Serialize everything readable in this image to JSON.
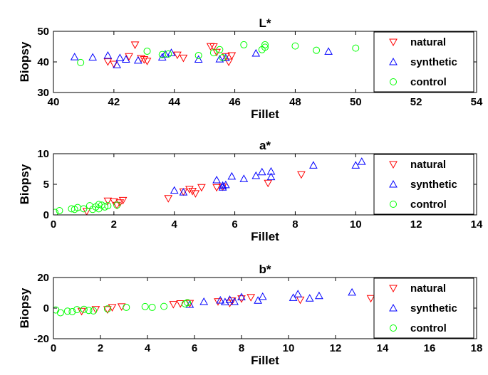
{
  "chart_data": [
    {
      "type": "scatter",
      "title": "L*",
      "xlabel": "Fillet",
      "ylabel": "Biopsy",
      "xlim": [
        40,
        54
      ],
      "ylim": [
        30,
        50
      ],
      "xticks": [
        40,
        42,
        44,
        46,
        48,
        50,
        52,
        54
      ],
      "yticks": [
        30,
        40,
        50
      ],
      "legend_position": "right",
      "series": [
        {
          "name": "natural",
          "marker": "triangle-down",
          "color": "#ff0000",
          "points": [
            [
              41.8,
              40.1
            ],
            [
              42.0,
              39.3
            ],
            [
              42.5,
              41.8
            ],
            [
              42.7,
              45.6
            ],
            [
              42.9,
              41.2
            ],
            [
              43.1,
              40.3
            ],
            [
              44.1,
              42.3
            ],
            [
              44.3,
              41.3
            ],
            [
              45.2,
              45.1
            ],
            [
              45.3,
              45.0
            ],
            [
              45.4,
              43.2
            ],
            [
              45.7,
              41.8
            ],
            [
              45.8,
              40.0
            ],
            [
              43.0,
              40.8
            ],
            [
              45.9,
              42.1
            ]
          ]
        },
        {
          "name": "synthetic",
          "marker": "triangle-up",
          "color": "#0000ff",
          "points": [
            [
              40.7,
              41.6
            ],
            [
              41.3,
              41.5
            ],
            [
              41.8,
              42.1
            ],
            [
              42.1,
              39.0
            ],
            [
              42.2,
              41.3
            ],
            [
              42.4,
              40.8
            ],
            [
              42.8,
              40.5
            ],
            [
              43.6,
              41.5
            ],
            [
              43.9,
              43.0
            ],
            [
              44.8,
              40.8
            ],
            [
              45.5,
              40.9
            ],
            [
              45.7,
              41.3
            ],
            [
              46.7,
              42.8
            ],
            [
              49.1,
              43.4
            ],
            [
              43.7,
              42.5
            ]
          ]
        },
        {
          "name": "control",
          "marker": "circle",
          "color": "#00ff00",
          "points": [
            [
              40.9,
              39.8
            ],
            [
              43.1,
              43.5
            ],
            [
              43.6,
              42.4
            ],
            [
              43.8,
              42.6
            ],
            [
              44.8,
              42.1
            ],
            [
              45.3,
              43.0
            ],
            [
              45.5,
              44.0
            ],
            [
              45.6,
              41.4
            ],
            [
              46.3,
              45.6
            ],
            [
              47.0,
              44.8
            ],
            [
              47.0,
              45.6
            ],
            [
              46.9,
              44.0
            ],
            [
              48.0,
              45.2
            ],
            [
              48.7,
              43.8
            ],
            [
              50.0,
              44.5
            ]
          ]
        }
      ]
    },
    {
      "type": "scatter",
      "title": "a*",
      "xlabel": "Fillet",
      "ylabel": "Biopsy",
      "xlim": [
        0,
        14
      ],
      "ylim": [
        0,
        10
      ],
      "xticks": [
        0,
        2,
        4,
        6,
        8,
        10,
        12,
        14
      ],
      "yticks": [
        0,
        5,
        10
      ],
      "legend_position": "right",
      "series": [
        {
          "name": "natural",
          "marker": "triangle-down",
          "color": "#ff0000",
          "points": [
            [
              1.1,
              0.6
            ],
            [
              1.8,
              2.3
            ],
            [
              2.0,
              2.2
            ],
            [
              2.1,
              1.6
            ],
            [
              2.2,
              2.0
            ],
            [
              2.3,
              2.4
            ],
            [
              3.8,
              2.7
            ],
            [
              4.3,
              3.8
            ],
            [
              4.5,
              4.2
            ],
            [
              4.6,
              3.9
            ],
            [
              4.7,
              3.5
            ],
            [
              4.9,
              4.5
            ],
            [
              5.4,
              4.5
            ],
            [
              5.6,
              4.6
            ],
            [
              7.1,
              5.2
            ],
            [
              8.2,
              6.6
            ]
          ]
        },
        {
          "name": "synthetic",
          "marker": "triangle-up",
          "color": "#0000ff",
          "points": [
            [
              4.0,
              4.0
            ],
            [
              4.3,
              3.7
            ],
            [
              5.4,
              5.7
            ],
            [
              5.6,
              4.5
            ],
            [
              5.7,
              4.9
            ],
            [
              5.9,
              6.3
            ],
            [
              6.3,
              5.9
            ],
            [
              6.7,
              6.4
            ],
            [
              6.9,
              7.0
            ],
            [
              7.2,
              7.1
            ],
            [
              7.2,
              6.2
            ],
            [
              8.6,
              8.1
            ],
            [
              10.0,
              8.1
            ],
            [
              10.2,
              8.7
            ],
            [
              5.6,
              4.8
            ]
          ]
        },
        {
          "name": "control",
          "marker": "circle",
          "color": "#00ff00",
          "points": [
            [
              0.05,
              0.4
            ],
            [
              0.2,
              0.7
            ],
            [
              0.6,
              1.0
            ],
            [
              0.7,
              0.9
            ],
            [
              0.8,
              1.2
            ],
            [
              1.0,
              1.0
            ],
            [
              1.2,
              1.5
            ],
            [
              1.3,
              0.9
            ],
            [
              1.4,
              1.3
            ],
            [
              1.5,
              1.7
            ],
            [
              1.6,
              1.6
            ],
            [
              1.7,
              1.3
            ],
            [
              1.8,
              1.5
            ],
            [
              2.1,
              1.6
            ],
            [
              1.5,
              1.0
            ]
          ]
        }
      ]
    },
    {
      "type": "scatter",
      "title": "b*",
      "xlabel": "Fillet",
      "ylabel": "Biopsy",
      "xlim": [
        0,
        18
      ],
      "ylim": [
        -20,
        20
      ],
      "xticks": [
        0,
        2,
        4,
        6,
        8,
        10,
        12,
        14,
        16,
        18
      ],
      "yticks": [
        -20,
        0,
        20
      ],
      "legend_position": "right",
      "series": [
        {
          "name": "natural",
          "marker": "triangle-down",
          "color": "#ff0000",
          "points": [
            [
              1.2,
              -2.0
            ],
            [
              1.8,
              -0.8
            ],
            [
              2.3,
              -0.9
            ],
            [
              2.5,
              0.5
            ],
            [
              2.9,
              1.0
            ],
            [
              5.4,
              3.0
            ],
            [
              5.8,
              3.2
            ],
            [
              7.0,
              4.3
            ],
            [
              7.5,
              3.3
            ],
            [
              7.6,
              4.8
            ],
            [
              8.0,
              6.2
            ],
            [
              8.4,
              7.1
            ],
            [
              10.5,
              5.4
            ],
            [
              13.5,
              6.4
            ],
            [
              5.1,
              2.5
            ]
          ]
        },
        {
          "name": "synthetic",
          "marker": "triangle-up",
          "color": "#0000ff",
          "points": [
            [
              5.8,
              2.3
            ],
            [
              6.4,
              4.2
            ],
            [
              7.1,
              5.1
            ],
            [
              7.5,
              5.5
            ],
            [
              7.7,
              4.2
            ],
            [
              8.0,
              7.2
            ],
            [
              8.7,
              5.0
            ],
            [
              8.9,
              7.5
            ],
            [
              10.2,
              6.8
            ],
            [
              10.4,
              9.2
            ],
            [
              10.9,
              6.4
            ],
            [
              11.3,
              8.0
            ],
            [
              12.7,
              10.3
            ],
            [
              7.3,
              4.0
            ]
          ]
        },
        {
          "name": "control",
          "marker": "circle",
          "color": "#00ff00",
          "points": [
            [
              0.1,
              -1.2
            ],
            [
              0.3,
              -3.0
            ],
            [
              0.6,
              -2.0
            ],
            [
              0.8,
              -2.3
            ],
            [
              1.0,
              -1.0
            ],
            [
              1.3,
              -0.8
            ],
            [
              1.5,
              -1.5
            ],
            [
              1.7,
              -1.8
            ],
            [
              2.3,
              -0.5
            ],
            [
              3.1,
              0.5
            ],
            [
              3.9,
              1.0
            ],
            [
              4.2,
              0.5
            ],
            [
              4.7,
              1.1
            ],
            [
              5.6,
              2.8
            ],
            [
              5.7,
              3.6
            ]
          ]
        }
      ]
    }
  ]
}
